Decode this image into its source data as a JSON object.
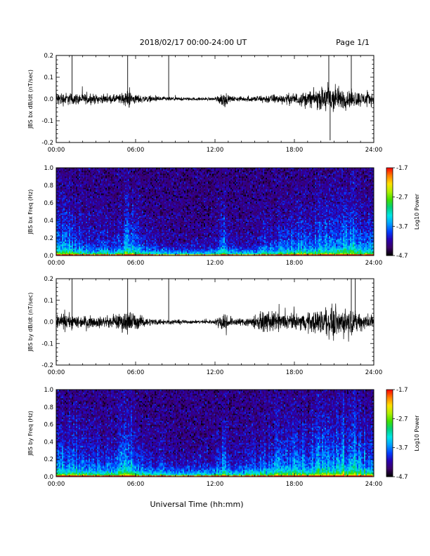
{
  "header": {
    "date_range": "2018/02/17  00:00-24:00 UT",
    "page": "Page 1/1"
  },
  "footer": {
    "xlabel": "Universal Time (hh:mm)"
  },
  "colorbar": {
    "label": "Log10 Power",
    "ticks": [
      "-1.7",
      "-2.7",
      "-3.7",
      "-4.7"
    ],
    "range": [
      -4.7,
      -1.7
    ],
    "colors": [
      "#000000",
      "#3a0066",
      "#2a00b0",
      "#0040ff",
      "#00a0ff",
      "#00e6e6",
      "#00d080",
      "#40e000",
      "#b0f000",
      "#ffe000",
      "#ff8000",
      "#ff0000"
    ]
  },
  "chart_data": [
    {
      "type": "line",
      "ylabel": "JBS bx dB/dt (nT/sec)",
      "xlim": [
        0,
        24
      ],
      "ylim": [
        -0.2,
        0.2
      ],
      "xticks": [
        "00:00",
        "06:00",
        "12:00",
        "18:00",
        "24:00"
      ],
      "yticks": [
        "0.2",
        "0.1",
        "0.0",
        "-0.1",
        "-0.2"
      ],
      "series": [
        {
          "x": [
            0,
            1,
            2,
            3,
            4,
            5,
            5.5,
            6,
            7,
            8,
            9,
            10,
            11,
            12,
            12.7,
            13,
            14,
            15,
            16,
            17,
            18,
            19,
            20,
            20.6,
            21,
            21.5,
            22,
            23,
            24
          ],
          "envelope": [
            0.05,
            0.04,
            0.035,
            0.03,
            0.025,
            0.035,
            0.06,
            0.03,
            0.02,
            0.015,
            0.012,
            0.01,
            0.01,
            0.01,
            0.06,
            0.02,
            0.015,
            0.02,
            0.03,
            0.03,
            0.04,
            0.05,
            0.07,
            0.12,
            0.1,
            0.07,
            0.06,
            0.05,
            0.04
          ]
        }
      ],
      "spikes": [
        {
          "x": 1.2,
          "y": 0.2
        },
        {
          "x": 5.4,
          "y": 0.2
        },
        {
          "x": 8.5,
          "y": 0.2
        },
        {
          "x": 20.6,
          "y": 0.2
        },
        {
          "x": 20.7,
          "y": -0.19
        },
        {
          "x": 22.3,
          "y": 0.2
        }
      ]
    },
    {
      "type": "heatmap",
      "ylabel": "JBS bx Freq (Hz)",
      "xlim": [
        0,
        24
      ],
      "ylim": [
        0.0,
        1.0
      ],
      "xticks": [
        "00:00",
        "06:00",
        "12:00",
        "18:00",
        "24:00"
      ],
      "yticks": [
        "1.0",
        "0.8",
        "0.6",
        "0.4",
        "0.2",
        "0.0"
      ],
      "activity_x": [
        0,
        1,
        2,
        3,
        4,
        5,
        5.5,
        6,
        7,
        8,
        9,
        10,
        11,
        12,
        12.7,
        13,
        14,
        15,
        16,
        17,
        18,
        19,
        20,
        21,
        22,
        23,
        24
      ],
      "activity": [
        0.6,
        0.55,
        0.45,
        0.4,
        0.35,
        0.45,
        0.75,
        0.45,
        0.3,
        0.25,
        0.2,
        0.2,
        0.2,
        0.25,
        0.55,
        0.3,
        0.25,
        0.3,
        0.4,
        0.5,
        0.5,
        0.55,
        0.6,
        0.65,
        0.7,
        0.6,
        0.55
      ]
    },
    {
      "type": "line",
      "ylabel": "JBS by dB/dt (nT/sec)",
      "xlim": [
        0,
        24
      ],
      "ylim": [
        -0.2,
        0.2
      ],
      "xticks": [
        "00:00",
        "06:00",
        "12:00",
        "18:00",
        "24:00"
      ],
      "yticks": [
        "0.2",
        "0.1",
        "0.0",
        "-0.1",
        "-0.2"
      ],
      "series": [
        {
          "x": [
            0,
            1,
            2,
            3,
            4,
            5,
            5.5,
            6,
            7,
            8,
            9,
            10,
            11,
            12,
            12.7,
            13,
            14,
            15,
            16,
            17,
            18,
            19,
            20,
            21,
            22,
            23,
            24
          ],
          "envelope": [
            0.05,
            0.05,
            0.04,
            0.035,
            0.035,
            0.06,
            0.09,
            0.05,
            0.025,
            0.02,
            0.015,
            0.012,
            0.012,
            0.015,
            0.08,
            0.03,
            0.025,
            0.045,
            0.07,
            0.06,
            0.05,
            0.06,
            0.09,
            0.1,
            0.08,
            0.06,
            0.05
          ]
        }
      ],
      "spikes": [
        {
          "x": 1.2,
          "y": 0.2
        },
        {
          "x": 5.4,
          "y": 0.2
        },
        {
          "x": 8.5,
          "y": 0.2
        },
        {
          "x": 22.3,
          "y": 0.2
        },
        {
          "x": 22.6,
          "y": 0.2
        }
      ]
    },
    {
      "type": "heatmap",
      "ylabel": "JBS by Freq (Hz)",
      "xlim": [
        0,
        24
      ],
      "ylim": [
        0.0,
        1.0
      ],
      "xticks": [
        "00:00",
        "06:00",
        "12:00",
        "18:00",
        "24:00"
      ],
      "yticks": [
        "1.0",
        "0.8",
        "0.6",
        "0.4",
        "0.2",
        "0.0"
      ],
      "activity_x": [
        0,
        1,
        2,
        3,
        4,
        5,
        5.5,
        6,
        7,
        8,
        9,
        10,
        11,
        12,
        12.7,
        13,
        14,
        15,
        16,
        17,
        18,
        19,
        20,
        21,
        22,
        23,
        24
      ],
      "activity": [
        0.65,
        0.6,
        0.55,
        0.5,
        0.45,
        0.6,
        0.85,
        0.55,
        0.4,
        0.35,
        0.3,
        0.3,
        0.3,
        0.35,
        0.65,
        0.4,
        0.35,
        0.45,
        0.55,
        0.6,
        0.6,
        0.65,
        0.7,
        0.75,
        0.8,
        0.7,
        0.65
      ]
    }
  ]
}
